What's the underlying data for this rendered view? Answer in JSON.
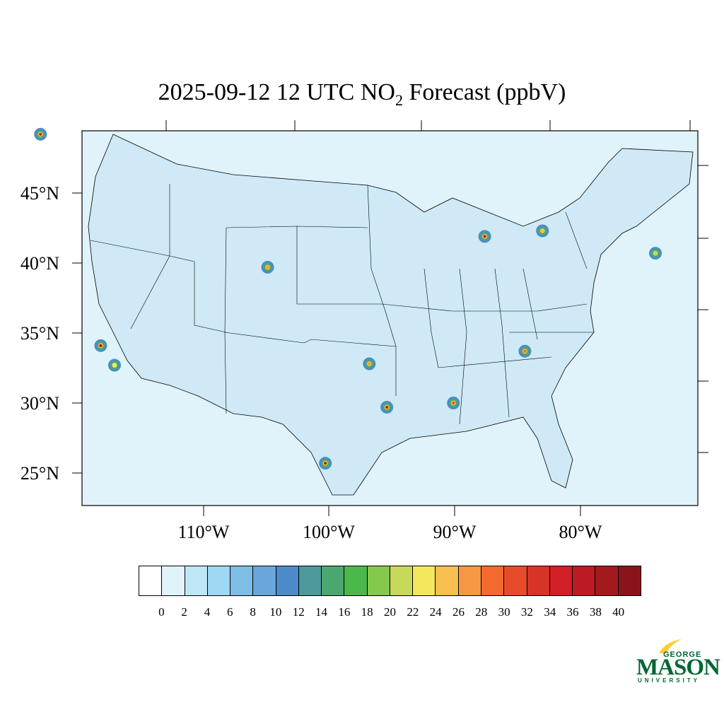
{
  "title": {
    "prefix": "2025-09-12 12 UTC NO",
    "subscript": "2",
    "suffix": " Forecast (ppbV)"
  },
  "map": {
    "lat_labels": [
      "45°N",
      "40°N",
      "35°N",
      "30°N",
      "25°N"
    ],
    "lon_labels": [
      "110°W",
      "100°W",
      "90°W",
      "80°W"
    ],
    "background_color": "#e0f3fa",
    "hotspots": [
      {
        "lat": 41.9,
        "lon": -87.6,
        "level": 36
      },
      {
        "lat": 29.7,
        "lon": -95.4,
        "level": 36
      },
      {
        "lat": 34.1,
        "lon": -118.2,
        "level": 38
      },
      {
        "lat": 32.8,
        "lon": -96.8,
        "level": 26
      },
      {
        "lat": 39.7,
        "lon": -104.9,
        "level": 26
      },
      {
        "lat": 49.2,
        "lon": -123.0,
        "level": 34
      },
      {
        "lat": 42.3,
        "lon": -83.0,
        "level": 24
      },
      {
        "lat": 33.7,
        "lon": -84.4,
        "level": 28
      },
      {
        "lat": 30.0,
        "lon": -90.1,
        "level": 30
      },
      {
        "lat": 25.7,
        "lon": -100.3,
        "level": 36
      },
      {
        "lat": 40.7,
        "lon": -74.0,
        "level": 20
      },
      {
        "lat": 32.7,
        "lon": -117.1,
        "level": 22
      }
    ]
  },
  "colorbar": {
    "tick_labels": [
      "0",
      "2",
      "4",
      "6",
      "8",
      "10",
      "12",
      "14",
      "16",
      "18",
      "20",
      "22",
      "24",
      "26",
      "28",
      "30",
      "32",
      "34",
      "36",
      "38",
      "40"
    ],
    "colors": [
      "#ffffff",
      "#e0f3fa",
      "#bfe6f6",
      "#9fd8f3",
      "#7ebde6",
      "#69a6dc",
      "#4b8cc8",
      "#4c9a9b",
      "#4ba770",
      "#4cb84b",
      "#86c74e",
      "#c6d95a",
      "#f5e75d",
      "#f6bf4e",
      "#f69841",
      "#f26a2e",
      "#e84b2a",
      "#d73326",
      "#d11f27",
      "#bc1b23",
      "#a4191d",
      "#8a1419"
    ]
  },
  "logo": {
    "line1": "GEORGE",
    "line2": "MASON",
    "line3": "UNIVERSITY",
    "color": "#006633"
  }
}
